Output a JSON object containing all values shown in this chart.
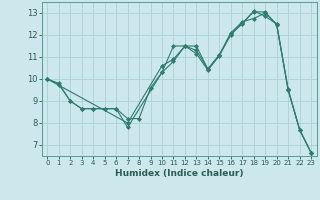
{
  "xlabel": "Humidex (Indice chaleur)",
  "background_color": "#cce8ec",
  "grid_color": "#b0d4da",
  "line_color": "#2e7d6e",
  "xlim": [
    -0.5,
    23.5
  ],
  "ylim": [
    6.5,
    13.5
  ],
  "yticks": [
    7,
    8,
    9,
    10,
    11,
    12,
    13
  ],
  "xticks": [
    0,
    1,
    2,
    3,
    4,
    5,
    6,
    7,
    8,
    9,
    10,
    11,
    12,
    13,
    14,
    15,
    16,
    17,
    18,
    19,
    20,
    21,
    22,
    23
  ],
  "line1_x": [
    0,
    1,
    2,
    3,
    4,
    5,
    6,
    7,
    10,
    11,
    12,
    13,
    14,
    15,
    16,
    17,
    18,
    19,
    20,
    21,
    22,
    23
  ],
  "line1_y": [
    10.0,
    9.8,
    9.0,
    8.65,
    8.65,
    8.65,
    8.65,
    7.8,
    10.3,
    10.8,
    11.5,
    11.3,
    10.45,
    11.1,
    12.1,
    12.6,
    12.75,
    13.0,
    12.5,
    9.5,
    7.7,
    6.65
  ],
  "line2_x": [
    0,
    1,
    2,
    3,
    4,
    5,
    6,
    7,
    8,
    9,
    10,
    11,
    12,
    13,
    14,
    15,
    16,
    17,
    18,
    19,
    20,
    21,
    22,
    23
  ],
  "line2_y": [
    10.0,
    9.75,
    9.0,
    8.65,
    8.65,
    8.65,
    8.65,
    8.2,
    8.2,
    9.6,
    10.3,
    11.5,
    11.5,
    11.15,
    10.4,
    11.05,
    12.05,
    12.5,
    13.1,
    12.85,
    12.5,
    9.5,
    7.7,
    6.65
  ],
  "line3_x": [
    0,
    7,
    10,
    11,
    12,
    13,
    14,
    15,
    16,
    17,
    18,
    19,
    20,
    21,
    22,
    23
  ],
  "line3_y": [
    10.0,
    8.0,
    10.6,
    10.9,
    11.5,
    11.5,
    10.45,
    11.1,
    12.0,
    12.55,
    13.05,
    13.05,
    12.45,
    9.55,
    7.7,
    6.65
  ]
}
